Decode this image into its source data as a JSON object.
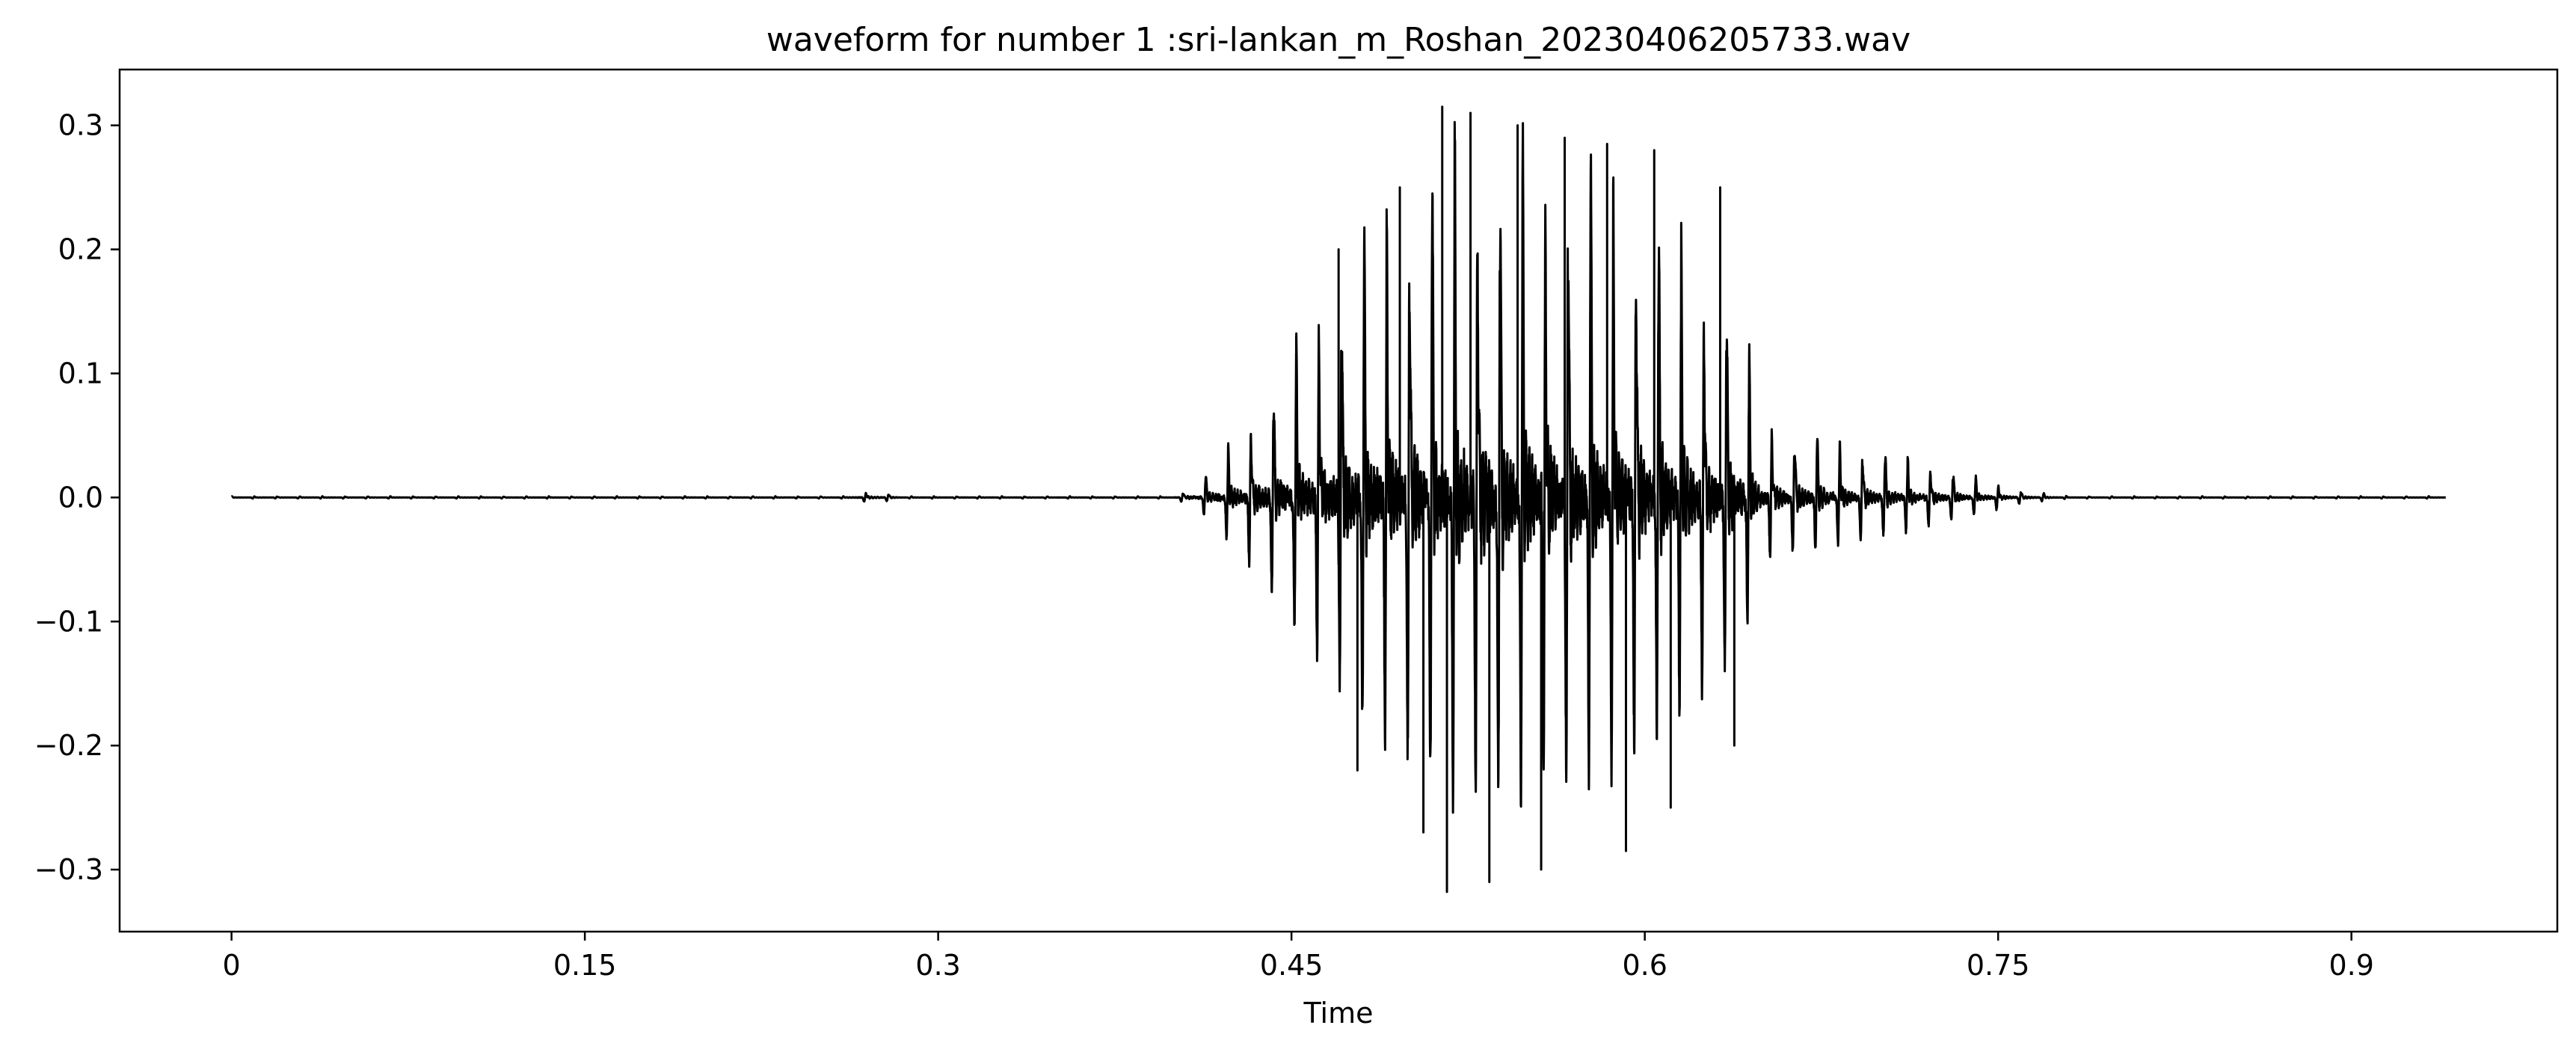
{
  "chart_data": {
    "type": "line",
    "title": "waveform for number 1 :sri-lankan_m_Roshan_20230406205733.wav",
    "xlabel": "Time",
    "ylabel": "",
    "xlim": [
      -0.0475,
      0.9874
    ],
    "ylim": [
      -0.35,
      0.345
    ],
    "x_ticks": [
      0,
      0.15,
      0.3,
      0.45,
      0.6,
      0.75,
      0.9
    ],
    "x_tick_labels": [
      "0",
      "0.15",
      "0.3",
      "0.45",
      "0.6",
      "0.75",
      "0.9"
    ],
    "y_ticks": [
      -0.3,
      -0.2,
      -0.1,
      0.0,
      0.1,
      0.2,
      0.3
    ],
    "y_tick_labels": [
      "−0.3",
      "−0.2",
      "−0.1",
      "0.0",
      "0.1",
      "0.2",
      "0.3"
    ],
    "grid": false,
    "legend": "none",
    "line_color": "#000000",
    "signal": {
      "start": 0,
      "end": 0.94,
      "fundamental_hz": 104,
      "envelope_time": [
        0,
        0.26,
        0.27,
        0.275,
        0.285,
        0.4,
        0.41,
        0.42,
        0.44,
        0.46,
        0.48,
        0.5,
        0.52,
        0.54,
        0.56,
        0.58,
        0.6,
        0.62,
        0.64,
        0.65,
        0.68,
        0.7,
        0.72,
        0.74,
        0.76,
        0.78,
        0.94
      ],
      "envelope_amplitude": [
        0.001,
        0.001,
        0.005,
        0.005,
        0.001,
        0.001,
        0.012,
        0.035,
        0.09,
        0.16,
        0.23,
        0.27,
        0.315,
        0.31,
        0.29,
        0.285,
        0.26,
        0.21,
        0.17,
        0.065,
        0.05,
        0.04,
        0.03,
        0.018,
        0.006,
        0.001,
        0.001
      ],
      "peaks": [
        {
          "x": 0.452,
          "y": 0.13
        },
        {
          "x": 0.47,
          "y": 0.2
        },
        {
          "x": 0.478,
          "y": -0.22
        },
        {
          "x": 0.496,
          "y": 0.25
        },
        {
          "x": 0.506,
          "y": -0.27
        },
        {
          "x": 0.514,
          "y": 0.315
        },
        {
          "x": 0.516,
          "y": -0.318
        },
        {
          "x": 0.526,
          "y": 0.31
        },
        {
          "x": 0.534,
          "y": -0.31
        },
        {
          "x": 0.546,
          "y": 0.3
        },
        {
          "x": 0.556,
          "y": -0.3
        },
        {
          "x": 0.566,
          "y": 0.29
        },
        {
          "x": 0.584,
          "y": 0.285
        },
        {
          "x": 0.592,
          "y": -0.285
        },
        {
          "x": 0.604,
          "y": 0.28
        },
        {
          "x": 0.611,
          "y": -0.25
        },
        {
          "x": 0.632,
          "y": 0.25
        },
        {
          "x": 0.638,
          "y": -0.2
        }
      ]
    }
  }
}
